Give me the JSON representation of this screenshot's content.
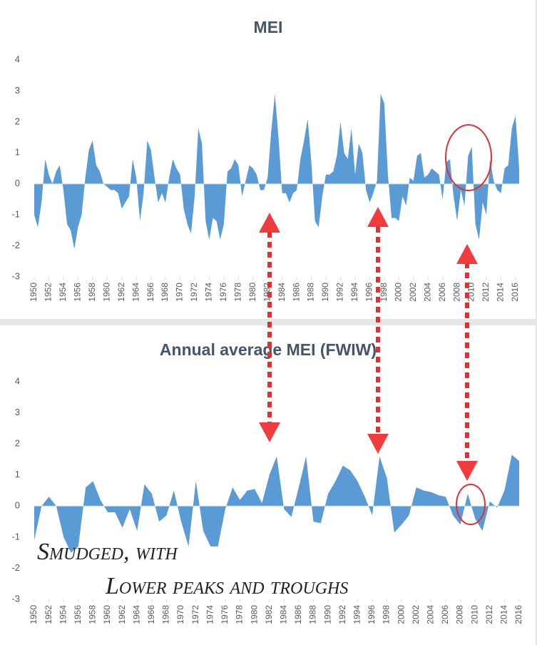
{
  "chart_data": [
    {
      "type": "area",
      "title": "MEI",
      "x": [
        1950,
        1950.5,
        1951,
        1951.5,
        1952,
        1952.5,
        1953,
        1953.5,
        1954,
        1954.5,
        1955,
        1955.5,
        1956,
        1956.5,
        1957,
        1957.5,
        1958,
        1958.5,
        1959,
        1959.5,
        1960,
        1960.5,
        1961,
        1961.5,
        1962,
        1962.5,
        1963,
        1963.5,
        1964,
        1964.5,
        1965,
        1965.5,
        1966,
        1966.5,
        1967,
        1967.5,
        1968,
        1968.5,
        1969,
        1969.5,
        1970,
        1970.5,
        1971,
        1971.5,
        1972,
        1972.5,
        1973,
        1973.5,
        1974,
        1974.5,
        1975,
        1975.5,
        1976,
        1976.5,
        1977,
        1977.5,
        1978,
        1978.5,
        1979,
        1979.5,
        1980,
        1980.5,
        1981,
        1981.5,
        1982,
        1982.5,
        1983,
        1983.5,
        1984,
        1984.5,
        1985,
        1985.5,
        1986,
        1986.5,
        1987,
        1987.5,
        1988,
        1988.5,
        1989,
        1989.5,
        1990,
        1990.5,
        1991,
        1991.5,
        1992,
        1992.5,
        1993,
        1993.5,
        1994,
        1994.5,
        1995,
        1995.5,
        1996,
        1996.5,
        1997,
        1997.5,
        1998,
        1998.5,
        1999,
        1999.5,
        2000,
        2000.5,
        2001,
        2001.5,
        2002,
        2002.5,
        2003,
        2003.5,
        2004,
        2004.5,
        2005,
        2005.5,
        2006,
        2006.5,
        2007,
        2007.5,
        2008,
        2008.5,
        2009,
        2009.5,
        2010,
        2010.5,
        2011,
        2011.5,
        2012,
        2012.5,
        2013,
        2013.5,
        2014,
        2014.5,
        2015,
        2015.5,
        2016,
        2016.5
      ],
      "values": [
        -1.0,
        -1.4,
        -0.6,
        0.8,
        0.3,
        0.0,
        0.4,
        0.6,
        -0.2,
        -1.3,
        -1.5,
        -2.1,
        -1.4,
        -1.0,
        0.2,
        1.1,
        1.4,
        0.6,
        0.4,
        0.0,
        -0.1,
        -0.2,
        -0.2,
        -0.3,
        -0.8,
        -0.6,
        -0.4,
        0.8,
        0.2,
        -1.2,
        -0.3,
        1.4,
        1.1,
        0.2,
        -0.6,
        -0.3,
        -0.6,
        0.2,
        0.8,
        0.5,
        0.3,
        -0.8,
        -1.3,
        -1.6,
        -0.4,
        1.8,
        1.3,
        -1.2,
        -1.8,
        -1.1,
        -1.2,
        -1.8,
        -1.3,
        0.4,
        0.5,
        0.8,
        0.6,
        -0.4,
        0.1,
        0.6,
        0.5,
        0.3,
        -0.2,
        -0.2,
        0.2,
        1.7,
        2.9,
        1.5,
        -0.3,
        -0.3,
        -0.6,
        -0.3,
        -0.2,
        0.8,
        1.4,
        2.1,
        0.7,
        -1.2,
        -1.4,
        -0.4,
        0.3,
        0.3,
        0.4,
        0.9,
        2.0,
        1.0,
        0.8,
        1.8,
        0.3,
        1.3,
        1.0,
        -0.2,
        -0.6,
        -0.3,
        0.1,
        2.9,
        2.6,
        0.3,
        -1.1,
        -1.1,
        -1.2,
        -0.4,
        -0.7,
        0.2,
        0.1,
        0.9,
        1.0,
        0.2,
        0.3,
        0.5,
        0.4,
        0.3,
        -0.5,
        0.7,
        0.8,
        -0.4,
        -1.2,
        -0.2,
        -0.7,
        0.9,
        1.2,
        -1.3,
        -1.8,
        -0.6,
        -1.0,
        0.8,
        0.1,
        -0.2,
        -0.3,
        0.5,
        0.6,
        1.8,
        2.2,
        0.5
      ],
      "color": "#5b9bd5",
      "xlim": [
        1950,
        2016.5
      ],
      "xticks": [
        1950,
        1952,
        1954,
        1956,
        1958,
        1960,
        1962,
        1964,
        1966,
        1968,
        1970,
        1972,
        1974,
        1976,
        1978,
        1980,
        1982,
        1984,
        1986,
        1988,
        1990,
        1992,
        1994,
        1996,
        1998,
        2000,
        2002,
        2004,
        2006,
        2008,
        2010,
        2012,
        2014,
        2016
      ],
      "ylim": [
        -3,
        4
      ],
      "yticks": [
        -3,
        -2,
        -1,
        0,
        1,
        2,
        3,
        4
      ]
    },
    {
      "type": "area",
      "title": "Annual average MEI (FWIW)",
      "x": [
        1950,
        1951,
        1952,
        1953,
        1954,
        1955,
        1956,
        1957,
        1958,
        1959,
        1960,
        1961,
        1962,
        1963,
        1964,
        1965,
        1966,
        1967,
        1968,
        1969,
        1970,
        1971,
        1972,
        1973,
        1974,
        1975,
        1976,
        1977,
        1978,
        1979,
        1980,
        1981,
        1982,
        1983,
        1984,
        1985,
        1986,
        1987,
        1988,
        1989,
        1990,
        1991,
        1992,
        1993,
        1994,
        1995,
        1996,
        1997,
        1998,
        1999,
        2000,
        2001,
        2002,
        2003,
        2004,
        2005,
        2006,
        2007,
        2008,
        2009,
        2010,
        2011,
        2012,
        2013,
        2014,
        2015,
        2016
      ],
      "values": [
        -1.1,
        0.0,
        0.3,
        0.0,
        -1.0,
        -1.5,
        -1.3,
        0.6,
        0.8,
        0.2,
        -0.2,
        -0.2,
        -0.7,
        -0.1,
        -0.8,
        0.7,
        0.4,
        -0.5,
        -0.3,
        0.5,
        -0.5,
        -1.3,
        0.8,
        -0.8,
        -1.3,
        -1.3,
        -0.1,
        0.6,
        0.2,
        0.5,
        0.55,
        0.1,
        1.0,
        1.6,
        -0.1,
        -0.35,
        0.6,
        1.6,
        -0.5,
        -0.55,
        0.4,
        0.8,
        1.3,
        1.15,
        0.8,
        0.3,
        -0.3,
        1.6,
        0.9,
        -0.85,
        -0.6,
        -0.3,
        0.6,
        0.5,
        0.45,
        0.35,
        0.3,
        -0.3,
        -0.6,
        0.4,
        -0.4,
        -0.8,
        0.15,
        -0.05,
        0.5,
        1.65,
        1.45
      ],
      "color": "#5b9bd5",
      "xlim": [
        1950,
        2016
      ],
      "xticks": [
        1950,
        1952,
        1954,
        1956,
        1958,
        1960,
        1962,
        1964,
        1966,
        1968,
        1970,
        1972,
        1974,
        1976,
        1978,
        1980,
        1982,
        1984,
        1986,
        1988,
        1990,
        1992,
        1994,
        1996,
        1998,
        2000,
        2002,
        2004,
        2006,
        2008,
        2010,
        2012,
        2014,
        2016
      ],
      "ylim": [
        -3,
        4
      ],
      "yticks": [
        -3,
        -2,
        -1,
        0,
        1,
        2,
        3,
        4
      ],
      "annotations": [
        "Smudged, with",
        "Lower peaks and troughs"
      ]
    }
  ]
}
